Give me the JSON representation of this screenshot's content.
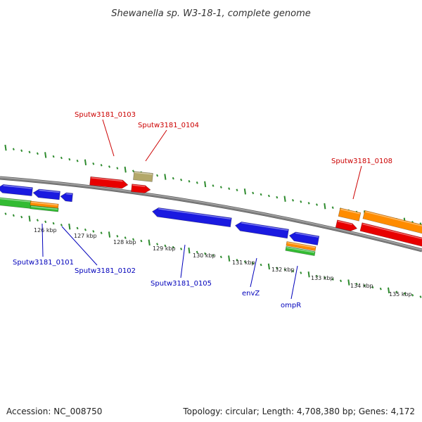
{
  "title": "Shewanella sp. W3-18-1, complete genome",
  "footer": {
    "accession": "Accession: NC_008750",
    "summary": "Topology: circular; Length: 4,708,380 bp; Genes: 4,172"
  },
  "colors": {
    "backbone": "#808080",
    "ticks": "#2e8b2e",
    "label_red": "#cc0000",
    "label_blue": "#0000bb",
    "gene_red": "#e80000",
    "gene_blue": "#1a1ae0",
    "gene_orange": "#ff8c00",
    "gene_green": "#33bb33",
    "gene_khaki": "#b3a86a"
  },
  "scale_labels": [
    "126 kbp",
    "127 kbp",
    "128 kbp",
    "129 kbp",
    "130 kbp",
    "131 kbp",
    "132 kbp",
    "133 kbp",
    "134 kbp",
    "135 kbp"
  ],
  "gene_labels": [
    {
      "text": "Sputw3181_0103",
      "color": "red"
    },
    {
      "text": "Sputw3181_0104",
      "color": "red"
    },
    {
      "text": "Sputw3181_0108",
      "color": "red"
    },
    {
      "text": "Sputw3181_0101",
      "color": "blue"
    },
    {
      "text": "Sputw3181_0102",
      "color": "blue"
    },
    {
      "text": "Sputw3181_0105",
      "color": "blue"
    },
    {
      "text": "envZ",
      "color": "blue"
    },
    {
      "text": "ompR",
      "color": "blue"
    }
  ]
}
